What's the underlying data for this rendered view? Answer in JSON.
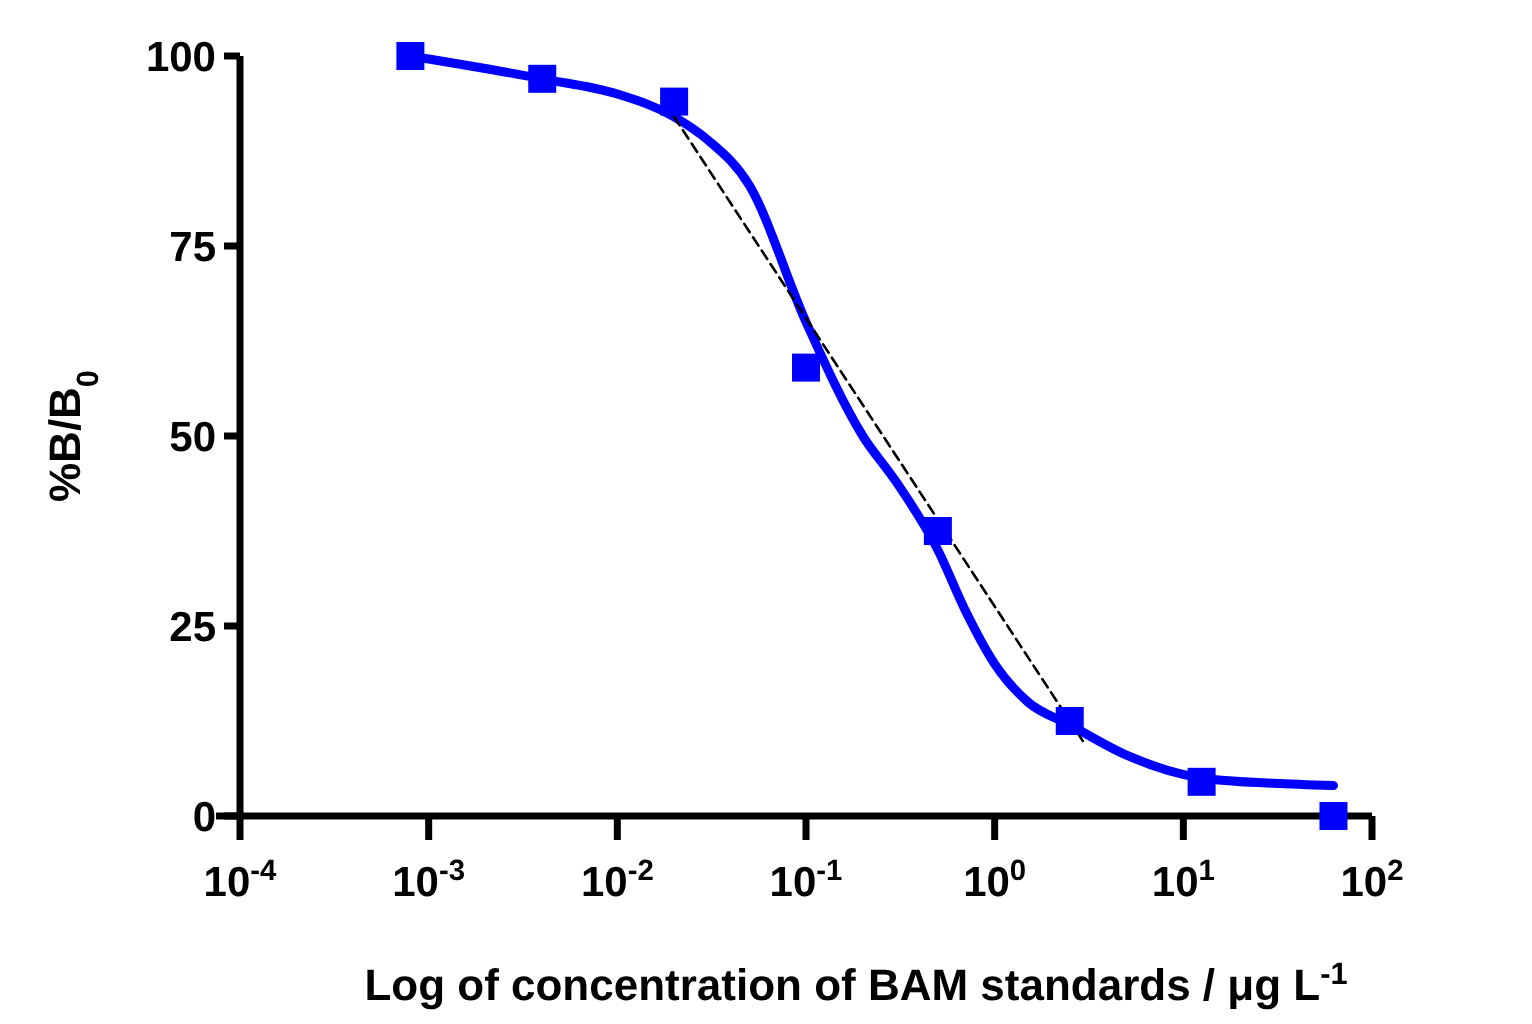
{
  "chart_data": {
    "type": "scatter",
    "xlabel": "Log of concentration of BAM standards / μg L$^{-1}$",
    "ylabel": "%B/B$_{0}$",
    "log": "x",
    "grid": false,
    "xlim": [
      0.0001,
      100
    ],
    "ylim": [
      0,
      100
    ],
    "xticks": [
      {
        "value": 0.0001,
        "label": "10$^{-4}$"
      },
      {
        "value": 0.001,
        "label": "10$^{-3}$"
      },
      {
        "value": 0.01,
        "label": "10$^{-2}$"
      },
      {
        "value": 0.1,
        "label": "10$^{-1}$"
      },
      {
        "value": 1,
        "label": "10$^{0}$"
      },
      {
        "value": 10,
        "label": "10$^{1}$"
      },
      {
        "value": 100,
        "label": "10$^{2}$"
      }
    ],
    "yticks": [
      0,
      25,
      50,
      75,
      100
    ],
    "series": [
      {
        "type": "line",
        "color": "#0000ff",
        "marker": "none",
        "line_style": "solid",
        "x": [
          0.0008,
          0.004,
          0.01,
          0.02,
          0.03,
          0.05,
          0.1,
          0.2,
          0.3,
          0.5,
          0.7,
          1,
          1.5,
          2.5,
          5,
          12.5,
          30,
          62.5
        ],
        "values": [
          100,
          97,
          95,
          92,
          89,
          83,
          65,
          50,
          44,
          35,
          27,
          20,
          15,
          12,
          8,
          5,
          4.3,
          4
        ]
      },
      {
        "type": "line",
        "color": "#000000",
        "marker": "none",
        "line_style": "dashed",
        "x": [
          0.02,
          3
        ],
        "values": [
          92,
          9.5
        ]
      },
      {
        "color": "#0000ff",
        "marker": "square",
        "x": [
          0.0008,
          0.004,
          0.02,
          0.1,
          0.5,
          2.5,
          12.5,
          62.5
        ],
        "values": [
          100,
          97,
          94,
          59,
          37.5,
          12.5,
          4.5,
          0
        ]
      }
    ]
  }
}
